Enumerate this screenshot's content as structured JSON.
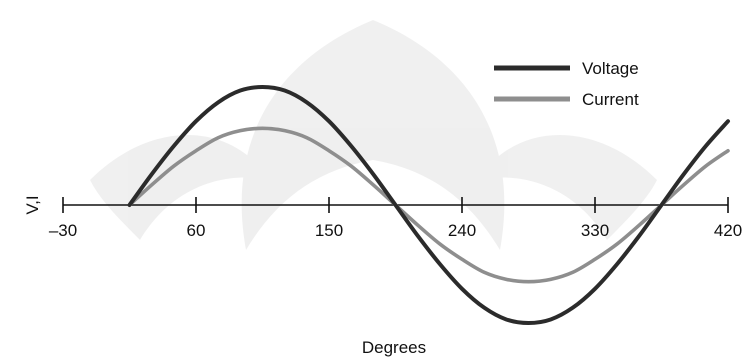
{
  "chart_data": {
    "type": "line",
    "title": "",
    "xlabel": "Degrees",
    "ylabel": "V,I",
    "xlim": [
      -30,
      420
    ],
    "ylim": [
      -1.05,
      1.0
    ],
    "x_ticks": [
      -30,
      60,
      150,
      240,
      330,
      420
    ],
    "x_tick_labels": [
      "–30",
      "60",
      "150",
      "240",
      "330",
      "420"
    ],
    "grid": false,
    "legend": "top-right",
    "series": [
      {
        "name": "Voltage",
        "color": "#2b2b2b",
        "x": [
          15,
          30,
          45,
          60,
          75,
          90,
          105,
          120,
          135,
          150,
          165,
          180,
          195,
          210,
          225,
          240,
          255,
          270,
          285,
          300,
          315,
          330,
          345,
          360,
          375,
          390,
          405,
          420
        ],
        "values": [
          0.0,
          0.26,
          0.5,
          0.71,
          0.87,
          0.97,
          1.0,
          0.97,
          0.87,
          0.71,
          0.5,
          0.26,
          0.0,
          -0.26,
          -0.5,
          -0.71,
          -0.87,
          -0.97,
          -1.0,
          -0.97,
          -0.87,
          -0.71,
          -0.5,
          -0.26,
          0.0,
          0.26,
          0.5,
          0.71
        ]
      },
      {
        "name": "Current",
        "color": "#8e8e8e",
        "x": [
          15,
          30,
          45,
          60,
          75,
          90,
          105,
          120,
          135,
          150,
          165,
          180,
          195,
          210,
          225,
          240,
          255,
          270,
          285,
          300,
          315,
          330,
          345,
          360,
          375,
          390,
          405,
          420
        ],
        "values": [
          0.0,
          0.17,
          0.33,
          0.46,
          0.57,
          0.63,
          0.65,
          0.63,
          0.57,
          0.46,
          0.33,
          0.17,
          0.0,
          -0.17,
          -0.33,
          -0.46,
          -0.57,
          -0.63,
          -0.65,
          -0.63,
          -0.57,
          -0.46,
          -0.33,
          -0.17,
          0.0,
          0.17,
          0.33,
          0.46
        ]
      }
    ]
  }
}
